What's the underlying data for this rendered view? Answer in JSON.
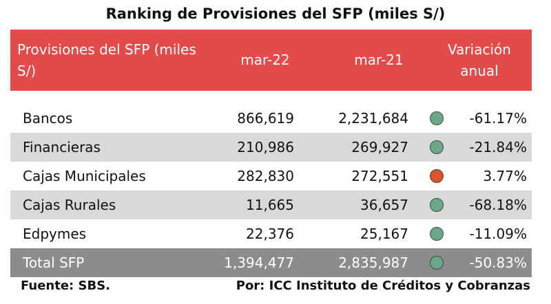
{
  "title": "Ranking de Provisiones del SFP (miles S/)",
  "header": {
    "label": "Provisiones del SFP (miles S/)",
    "col1": "mar-22",
    "col2": "mar-21",
    "col3_line1": "Variación",
    "col3_line2": "anual"
  },
  "rows": [
    {
      "label": "Bancos",
      "mar22": "866,619",
      "mar21": "2,231,684",
      "indicator": "#6aa88a",
      "variation": "-61.17%"
    },
    {
      "label": "Financieras",
      "mar22": "210,986",
      "mar21": "269,927",
      "indicator": "#6aa88a",
      "variation": "-21.84%"
    },
    {
      "label": "Cajas Municipales",
      "mar22": "282,830",
      "mar21": "272,551",
      "indicator": "#d9532f",
      "variation": "3.77%"
    },
    {
      "label": "Cajas Rurales",
      "mar22": "11,665",
      "mar21": "36,657",
      "indicator": "#6aa88a",
      "variation": "-68.18%"
    },
    {
      "label": "Edpymes",
      "mar22": "22,376",
      "mar21": "25,167",
      "indicator": "#6aa88a",
      "variation": "-11.09%"
    }
  ],
  "total": {
    "label": "Total SFP",
    "mar22": "1,394,477",
    "mar21": "2,835,987",
    "indicator": "#6aa88a",
    "variation": "-50.83%"
  },
  "footer": {
    "source": "Fuente: SBS.",
    "author": "Por: ICC Instituto de Créditos y Cobranzas"
  },
  "colors": {
    "header_bg": "#e34a4a",
    "shade_bg": "#d9d9d9",
    "total_bg": "#8c8c8c"
  }
}
